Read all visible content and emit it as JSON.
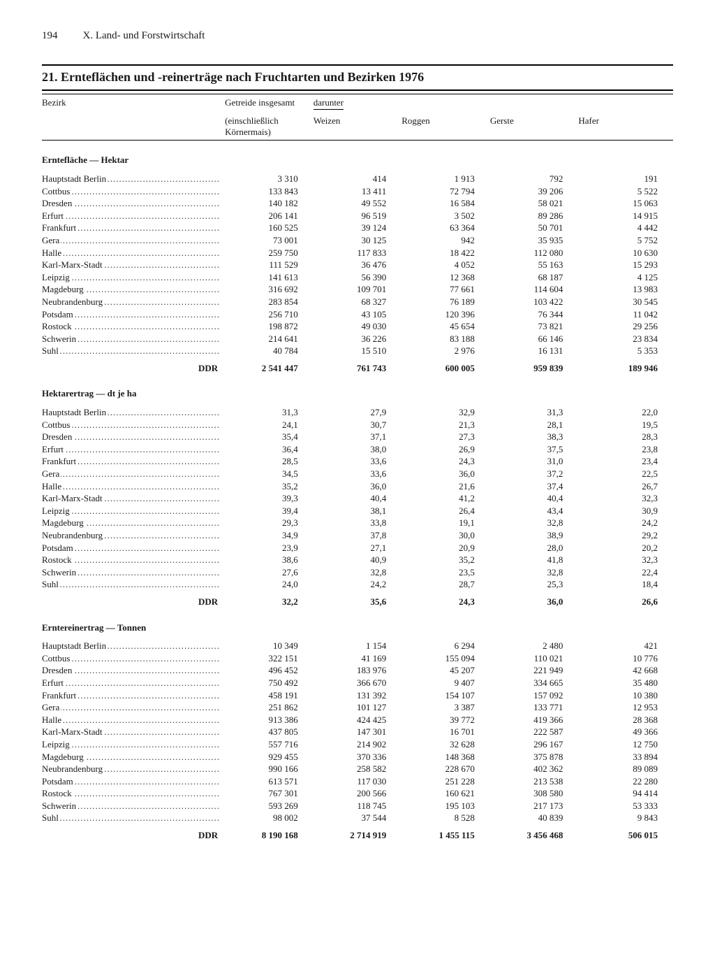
{
  "page_number": "194",
  "chapter": "X. Land- und Forstwirtschaft",
  "title": "21. Ernteflächen und -reinerträge nach Fruchtarten und Bezirken 1976",
  "columns": {
    "bezirk": "Bezirk",
    "col1a": "Getreide insgesamt",
    "col1b": "(einschließlich Körnermais)",
    "darunter": "darunter",
    "weizen": "Weizen",
    "roggen": "Roggen",
    "gerste": "Gerste",
    "hafer": "Hafer"
  },
  "sections": [
    {
      "label": "Erntefläche — Hektar",
      "rows": [
        {
          "name": "Hauptstadt Berlin",
          "v": [
            "3 310",
            "414",
            "1 913",
            "792",
            "191"
          ]
        },
        {
          "name": "Cottbus",
          "v": [
            "133 843",
            "13 411",
            "72 794",
            "39 206",
            "5 522"
          ]
        },
        {
          "name": "Dresden",
          "v": [
            "140 182",
            "49 552",
            "16 584",
            "58 021",
            "15 063"
          ]
        },
        {
          "name": "Erfurt",
          "v": [
            "206 141",
            "96 519",
            "3 502",
            "89 286",
            "14 915"
          ]
        },
        {
          "name": "Frankfurt",
          "v": [
            "160 525",
            "39 124",
            "63 364",
            "50 701",
            "4 442"
          ]
        },
        {
          "name": "Gera",
          "v": [
            "73 001",
            "30 125",
            "942",
            "35 935",
            "5 752"
          ]
        },
        {
          "name": "Halle",
          "v": [
            "259 750",
            "117 833",
            "18 422",
            "112 080",
            "10 630"
          ]
        },
        {
          "name": "Karl-Marx-Stadt",
          "v": [
            "111 529",
            "36 476",
            "4 052",
            "55 163",
            "15 293"
          ]
        },
        {
          "name": "Leipzig",
          "v": [
            "141 613",
            "56 390",
            "12 368",
            "68 187",
            "4 125"
          ]
        },
        {
          "name": "Magdeburg",
          "v": [
            "316 692",
            "109 701",
            "77 661",
            "114 604",
            "13 983"
          ]
        },
        {
          "name": "Neubrandenburg",
          "v": [
            "283 854",
            "68 327",
            "76 189",
            "103 422",
            "30 545"
          ]
        },
        {
          "name": "Potsdam",
          "v": [
            "256 710",
            "43 105",
            "120 396",
            "76 344",
            "11 042"
          ]
        },
        {
          "name": "Rostock",
          "v": [
            "198 872",
            "49 030",
            "45 654",
            "73 821",
            "29 256"
          ]
        },
        {
          "name": "Schwerin",
          "v": [
            "214 641",
            "36 226",
            "83 188",
            "66 146",
            "23 834"
          ]
        },
        {
          "name": "Suhl",
          "v": [
            "40 784",
            "15 510",
            "2 976",
            "16 131",
            "5 353"
          ]
        }
      ],
      "total": {
        "name": "DDR",
        "v": [
          "2 541 447",
          "761 743",
          "600 005",
          "959 839",
          "189 946"
        ]
      }
    },
    {
      "label": "Hektarertrag — dt je ha",
      "rows": [
        {
          "name": "Hauptstadt Berlin",
          "v": [
            "31,3",
            "27,9",
            "32,9",
            "31,3",
            "22,0"
          ]
        },
        {
          "name": "Cottbus",
          "v": [
            "24,1",
            "30,7",
            "21,3",
            "28,1",
            "19,5"
          ]
        },
        {
          "name": "Dresden",
          "v": [
            "35,4",
            "37,1",
            "27,3",
            "38,3",
            "28,3"
          ]
        },
        {
          "name": "Erfurt",
          "v": [
            "36,4",
            "38,0",
            "26,9",
            "37,5",
            "23,8"
          ]
        },
        {
          "name": "Frankfurt",
          "v": [
            "28,5",
            "33,6",
            "24,3",
            "31,0",
            "23,4"
          ]
        },
        {
          "name": "Gera",
          "v": [
            "34,5",
            "33,6",
            "36,0",
            "37,2",
            "22,5"
          ]
        },
        {
          "name": "Halle",
          "v": [
            "35,2",
            "36,0",
            "21,6",
            "37,4",
            "26,7"
          ]
        },
        {
          "name": "Karl-Marx-Stadt",
          "v": [
            "39,3",
            "40,4",
            "41,2",
            "40,4",
            "32,3"
          ]
        },
        {
          "name": "Leipzig",
          "v": [
            "39,4",
            "38,1",
            "26,4",
            "43,4",
            "30,9"
          ]
        },
        {
          "name": "Magdeburg",
          "v": [
            "29,3",
            "33,8",
            "19,1",
            "32,8",
            "24,2"
          ]
        },
        {
          "name": "Neubrandenburg",
          "v": [
            "34,9",
            "37,8",
            "30,0",
            "38,9",
            "29,2"
          ]
        },
        {
          "name": "Potsdam",
          "v": [
            "23,9",
            "27,1",
            "20,9",
            "28,0",
            "20,2"
          ]
        },
        {
          "name": "Rostock",
          "v": [
            "38,6",
            "40,9",
            "35,2",
            "41,8",
            "32,3"
          ]
        },
        {
          "name": "Schwerin",
          "v": [
            "27,6",
            "32,8",
            "23,5",
            "32,8",
            "22,4"
          ]
        },
        {
          "name": "Suhl",
          "v": [
            "24,0",
            "24,2",
            "28,7",
            "25,3",
            "18,4"
          ]
        }
      ],
      "total": {
        "name": "DDR",
        "v": [
          "32,2",
          "35,6",
          "24,3",
          "36,0",
          "26,6"
        ]
      }
    },
    {
      "label": "Erntereinertrag — Tonnen",
      "rows": [
        {
          "name": "Hauptstadt Berlin",
          "v": [
            "10 349",
            "1 154",
            "6 294",
            "2 480",
            "421"
          ]
        },
        {
          "name": "Cottbus",
          "v": [
            "322 151",
            "41 169",
            "155 094",
            "110 021",
            "10 776"
          ]
        },
        {
          "name": "Dresden",
          "v": [
            "496 452",
            "183 976",
            "45 207",
            "221 949",
            "42 668"
          ]
        },
        {
          "name": "Erfurt",
          "v": [
            "750 492",
            "366 670",
            "9 407",
            "334 665",
            "35 480"
          ]
        },
        {
          "name": "Frankfurt",
          "v": [
            "458 191",
            "131 392",
            "154 107",
            "157 092",
            "10 380"
          ]
        },
        {
          "name": "Gera",
          "v": [
            "251 862",
            "101 127",
            "3 387",
            "133 771",
            "12 953"
          ]
        },
        {
          "name": "Halle",
          "v": [
            "913 386",
            "424 425",
            "39 772",
            "419 366",
            "28 368"
          ]
        },
        {
          "name": "Karl-Marx-Stadt",
          "v": [
            "437 805",
            "147 301",
            "16 701",
            "222 587",
            "49 366"
          ]
        },
        {
          "name": "Leipzig",
          "v": [
            "557 716",
            "214 902",
            "32 628",
            "296 167",
            "12 750"
          ]
        },
        {
          "name": "Magdeburg",
          "v": [
            "929 455",
            "370 336",
            "148 368",
            "375 878",
            "33 894"
          ]
        },
        {
          "name": "Neubrandenburg",
          "v": [
            "990 166",
            "258 582",
            "228 670",
            "402 362",
            "89 089"
          ]
        },
        {
          "name": "Potsdam",
          "v": [
            "613 571",
            "117 030",
            "251 228",
            "213 538",
            "22 280"
          ]
        },
        {
          "name": "Rostock",
          "v": [
            "767 301",
            "200 566",
            "160 621",
            "308 580",
            "94 414"
          ]
        },
        {
          "name": "Schwerin",
          "v": [
            "593 269",
            "118 745",
            "195 103",
            "217 173",
            "53 333"
          ]
        },
        {
          "name": "Suhl",
          "v": [
            "98 002",
            "37 544",
            "8 528",
            "40 839",
            "9 843"
          ]
        }
      ],
      "total": {
        "name": "DDR",
        "v": [
          "8 190 168",
          "2 714 919",
          "1 455 115",
          "3 456 468",
          "506 015"
        ]
      }
    }
  ]
}
